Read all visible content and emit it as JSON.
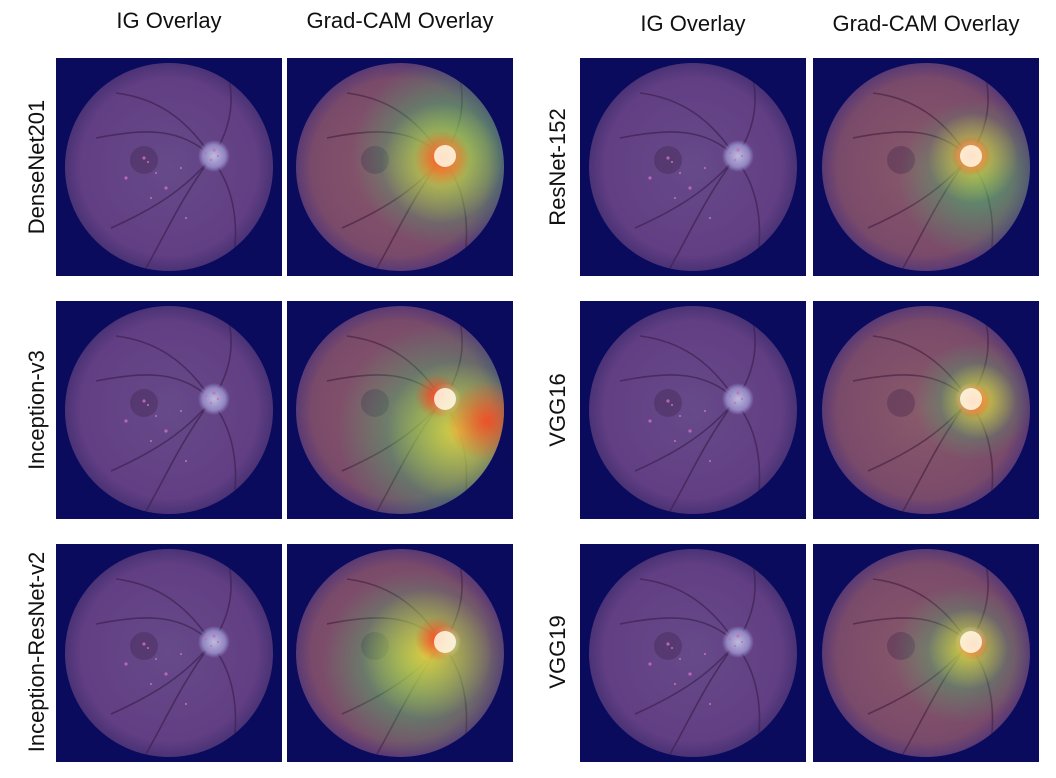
{
  "headers": {
    "left": {
      "ig": "IG Overlay",
      "gradcam": "Grad-CAM Overlay"
    },
    "right": {
      "ig": "IG Overlay",
      "gradcam": "Grad-CAM Overlay"
    }
  },
  "models": {
    "left": [
      "DenseNet201",
      "Inception-v3",
      "Inception-ResNet-v2"
    ],
    "right": [
      "ResNet-152",
      "VGG16",
      "VGG19"
    ]
  },
  "colors": {
    "background": "#0b0b5e",
    "fundus": "#7a4a86",
    "optic_disc": "#b9a9d9",
    "heat_hot": "#ff3b1f",
    "heat_warm": "#ffd23a",
    "heat_cool": "#37d06c"
  }
}
